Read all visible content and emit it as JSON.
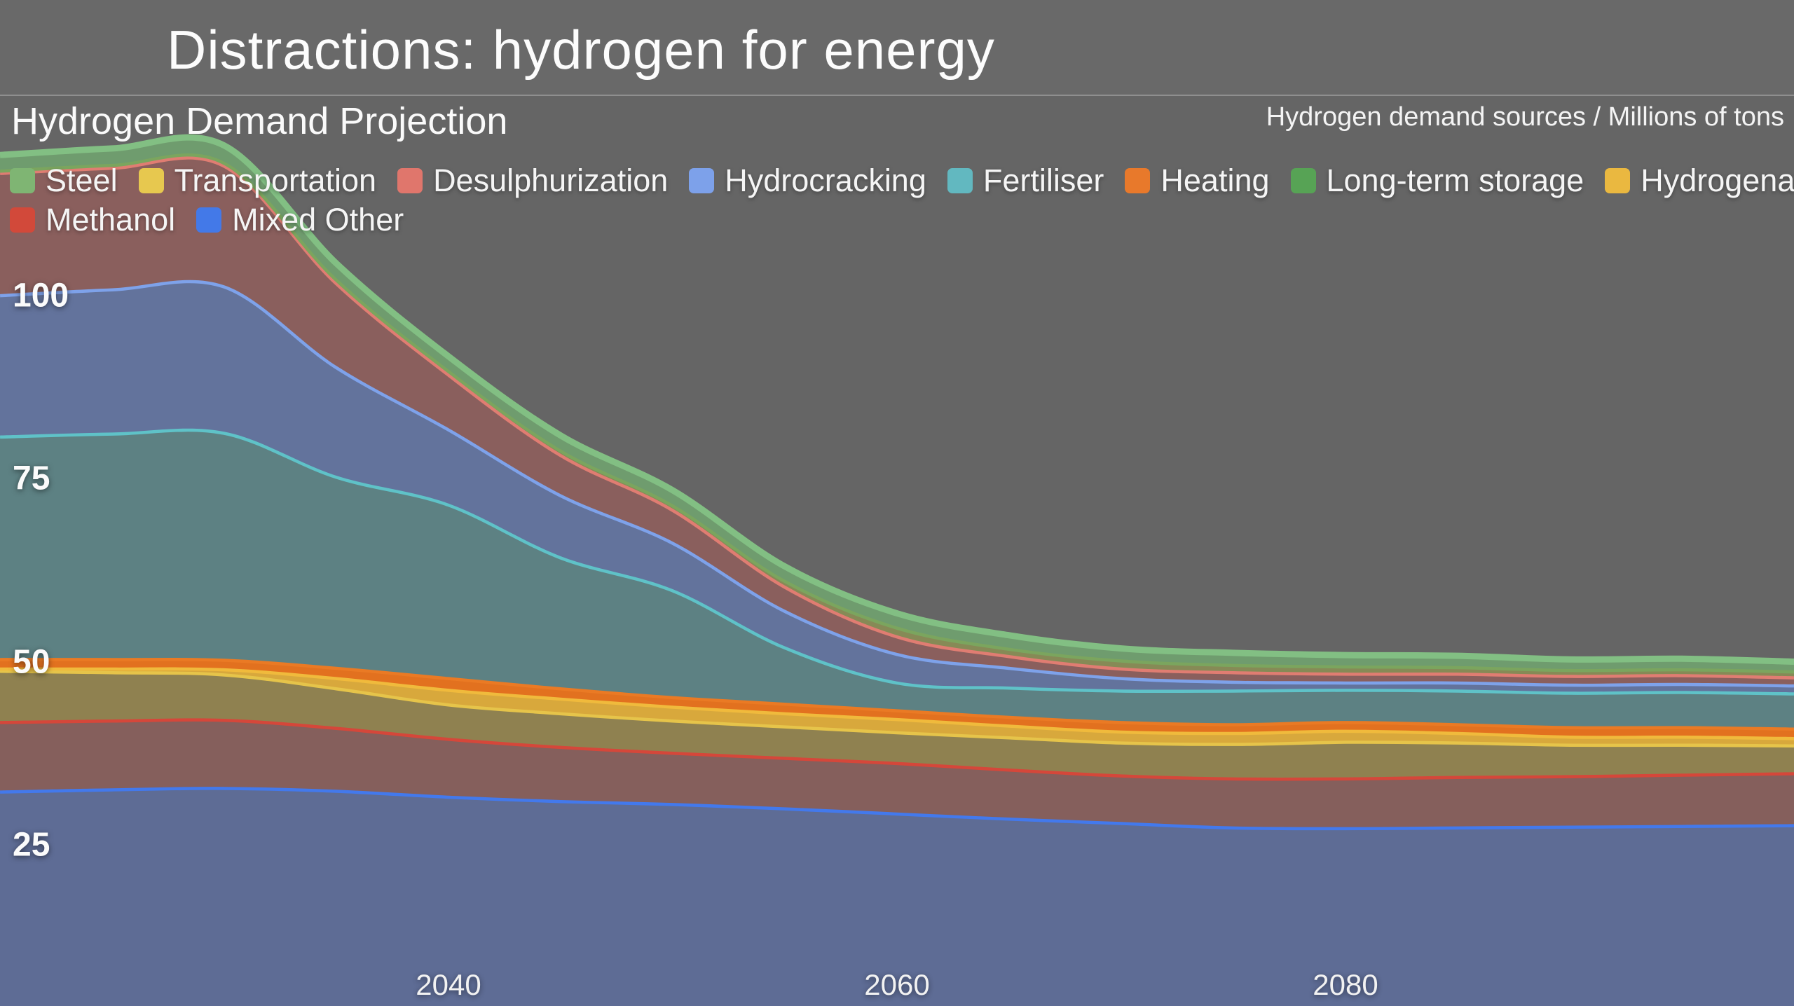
{
  "page": {
    "title": "Distractions: hydrogen for energy"
  },
  "chart": {
    "title": "Hydrogen Demand Projection",
    "unit_note": "Hydrogen demand sources / Millions of tons"
  },
  "legend": {
    "rows": [
      [
        {
          "key": "steel",
          "label": "Steel",
          "color": "#7fb573"
        },
        {
          "key": "transportation",
          "label": "Transportation",
          "color": "#e7c84f"
        },
        {
          "key": "desulphurization",
          "label": "Desulphurization",
          "color": "#e0766c"
        },
        {
          "key": "hydrocracking",
          "label": "Hydrocracking",
          "color": "#7da1ea"
        },
        {
          "key": "fertiliser",
          "label": "Fertiliser",
          "color": "#62b8c0"
        },
        {
          "key": "heating",
          "label": "Heating",
          "color": "#e8792b"
        },
        {
          "key": "long-term-storage",
          "label": "Long-term storage",
          "color": "#57a355"
        },
        {
          "key": "hydrogenation",
          "label": "Hydrogenation",
          "color": "#eab840"
        }
      ],
      [
        {
          "key": "methanol",
          "label": "Methanol",
          "color": "#d2493a"
        },
        {
          "key": "mixed-other",
          "label": "Mixed Other",
          "color": "#4379e8"
        }
      ]
    ]
  },
  "chart_data": {
    "type": "area",
    "stacked": true,
    "title": "Hydrogen Demand Projection",
    "ylabel": "Millions of tons",
    "xlabel": "",
    "grid": false,
    "legend_position": "top",
    "ylim": [
      0,
      125
    ],
    "x": [
      2020,
      2025,
      2030,
      2035,
      2040,
      2045,
      2050,
      2055,
      2060,
      2065,
      2070,
      2075,
      2080,
      2085,
      2090,
      2095,
      2100
    ],
    "x_ticks": [
      2040,
      2060,
      2080
    ],
    "y_ticks": [
      100,
      75,
      50,
      25
    ],
    "stack_order": "bottom-to-top",
    "series": [
      {
        "name": "Mixed Other",
        "stroke": "#4379ec",
        "fill": "#5e6c95",
        "values": [
          32.5,
          32.8,
          33.0,
          32.6,
          31.8,
          31.2,
          30.8,
          30.2,
          29.5,
          28.8,
          28.2,
          27.6,
          27.5,
          27.6,
          27.7,
          27.8,
          27.9
        ]
      },
      {
        "name": "Methanol",
        "stroke": "#d5473a",
        "fill": "#855f5c",
        "values": [
          9.5,
          9.4,
          9.3,
          8.6,
          7.9,
          7.4,
          7.0,
          6.9,
          6.9,
          6.7,
          6.5,
          6.7,
          6.8,
          6.9,
          6.9,
          7.0,
          7.1
        ]
      },
      {
        "name": "Transportation",
        "stroke": "#e6c44a",
        "fill": "#8f8150",
        "values": [
          7.0,
          6.6,
          6.2,
          5.4,
          4.7,
          4.6,
          4.4,
          4.3,
          4.2,
          4.4,
          4.5,
          4.7,
          5.0,
          4.7,
          4.3,
          4.1,
          3.8
        ]
      },
      {
        "name": "Hydrogenation",
        "stroke": "#f0ba3c",
        "fill": "#d8a83c",
        "values": [
          0.3,
          0.5,
          0.7,
          1.4,
          2.0,
          2.0,
          1.9,
          1.8,
          1.8,
          1.6,
          1.5,
          1.5,
          1.5,
          1.3,
          1.1,
          1.1,
          1.0
        ]
      },
      {
        "name": "Heating",
        "stroke": "#ea7a24",
        "fill": "#e2711f",
        "values": [
          1.3,
          1.3,
          1.3,
          1.4,
          1.6,
          1.4,
          1.3,
          1.3,
          1.2,
          1.2,
          1.3,
          1.2,
          1.2,
          1.2,
          1.3,
          1.3,
          1.3
        ]
      },
      {
        "name": "Fertiliser",
        "stroke": "#5fc2c8",
        "fill": "#5d8183",
        "values": [
          30.4,
          30.8,
          31.0,
          26.1,
          23.7,
          17.9,
          14.6,
          7.7,
          3.8,
          4.0,
          4.3,
          4.6,
          4.4,
          4.6,
          4.7,
          4.8,
          4.8
        ]
      },
      {
        "name": "Hydrocracking",
        "stroke": "#7ea2ea",
        "fill": "#63739c",
        "values": [
          19.3,
          19.7,
          20.0,
          15.0,
          10.3,
          8.5,
          6.5,
          5.0,
          3.9,
          2.7,
          1.7,
          1.2,
          1.0,
          1.1,
          1.1,
          1.1,
          1.1
        ]
      },
      {
        "name": "Desulphurization",
        "stroke": "#e07d72",
        "fill": "#8a5f5d",
        "values": [
          16.7,
          16.6,
          16.5,
          11.5,
          7.5,
          5.5,
          4.5,
          3.3,
          2.4,
          1.6,
          1.3,
          1.3,
          1.2,
          1.2,
          1.2,
          1.2,
          1.1
        ]
      },
      {
        "name": "Long-term storage",
        "stroke": "#7ba55e",
        "fill": "#868a56",
        "values": [
          0.3,
          0.4,
          0.4,
          0.5,
          0.5,
          0.6,
          0.6,
          0.8,
          1.2,
          1.0,
          1.1,
          1.0,
          1.0,
          0.9,
          0.8,
          0.8,
          0.8
        ]
      },
      {
        "name": "Steel",
        "stroke": "#82bf83",
        "fill": "#6f9c6e",
        "values": [
          2.0,
          2.1,
          2.2,
          2.0,
          1.8,
          1.9,
          1.9,
          1.8,
          1.8,
          1.7,
          1.5,
          1.5,
          1.4,
          1.4,
          1.3,
          1.3,
          1.2
        ]
      }
    ]
  }
}
